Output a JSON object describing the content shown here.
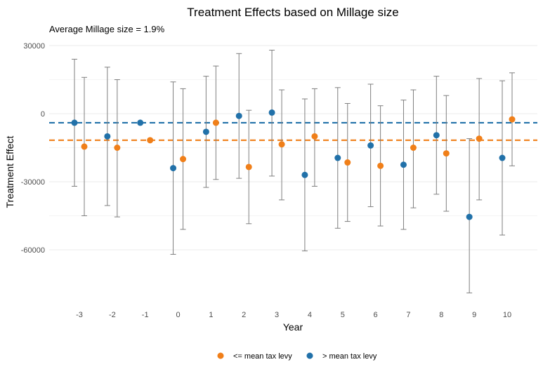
{
  "chart_data": {
    "type": "scatter",
    "title": "Treatment Effects based on Millage size",
    "subtitle": "Average Millage size = 1.9%",
    "xlabel": "Year",
    "ylabel": "Treatment Effect",
    "x": [
      -3,
      -2,
      -1,
      0,
      1,
      2,
      3,
      4,
      5,
      6,
      7,
      8,
      9,
      10
    ],
    "xticks": [
      "-3",
      "-2",
      "-1",
      "0",
      "1",
      "2",
      "3",
      "4",
      "5",
      "6",
      "7",
      "8",
      "9",
      "10"
    ],
    "ylim": [
      -80000,
      30000
    ],
    "yticks": [
      30000,
      0,
      -30000,
      -60000
    ],
    "ytick_labels": [
      "30000",
      "0",
      "-30000",
      "-60000"
    ],
    "grid": true,
    "legend_position": "bottom",
    "series": [
      {
        "name": "<= mean tax levy",
        "color": "#f07f19",
        "mean_line": -11700,
        "points": [
          {
            "x": -3,
            "y": -14500,
            "lo": -45000,
            "hi": 16000
          },
          {
            "x": -2,
            "y": -15000,
            "lo": -45500,
            "hi": 15000
          },
          {
            "x": -1,
            "y": -11700,
            "lo": null,
            "hi": null
          },
          {
            "x": 0,
            "y": -20000,
            "lo": -51000,
            "hi": 11000
          },
          {
            "x": 1,
            "y": -4000,
            "lo": -29000,
            "hi": 21000
          },
          {
            "x": 2,
            "y": -23500,
            "lo": -48500,
            "hi": 1500
          },
          {
            "x": 3,
            "y": -13500,
            "lo": -38000,
            "hi": 10500
          },
          {
            "x": 4,
            "y": -10000,
            "lo": -32000,
            "hi": 11000
          },
          {
            "x": 5,
            "y": -21500,
            "lo": -47500,
            "hi": 4500
          },
          {
            "x": 6,
            "y": -23000,
            "lo": -49500,
            "hi": 3500
          },
          {
            "x": 7,
            "y": -15000,
            "lo": -41500,
            "hi": 10500
          },
          {
            "x": 8,
            "y": -17500,
            "lo": -43000,
            "hi": 8000
          },
          {
            "x": 9,
            "y": -11000,
            "lo": -38000,
            "hi": 15500
          },
          {
            "x": 10,
            "y": -2500,
            "lo": -23000,
            "hi": 18000
          }
        ]
      },
      {
        "name": "> mean tax levy",
        "color": "#2171a9",
        "mean_line": -4000,
        "points": [
          {
            "x": -3,
            "y": -4000,
            "lo": -32000,
            "hi": 24000
          },
          {
            "x": -2,
            "y": -10000,
            "lo": -40500,
            "hi": 20500
          },
          {
            "x": -1,
            "y": -4000,
            "lo": null,
            "hi": null
          },
          {
            "x": 0,
            "y": -24000,
            "lo": -62000,
            "hi": 14000
          },
          {
            "x": 1,
            "y": -8000,
            "lo": -32500,
            "hi": 16500
          },
          {
            "x": 2,
            "y": -1000,
            "lo": -28500,
            "hi": 26500
          },
          {
            "x": 3,
            "y": 500,
            "lo": -27500,
            "hi": 28000
          },
          {
            "x": 4,
            "y": -27000,
            "lo": -60500,
            "hi": 6500
          },
          {
            "x": 5,
            "y": -19500,
            "lo": -50500,
            "hi": 11500
          },
          {
            "x": 6,
            "y": -14000,
            "lo": -41000,
            "hi": 13000
          },
          {
            "x": 7,
            "y": -22500,
            "lo": -51000,
            "hi": 6000
          },
          {
            "x": 8,
            "y": -9500,
            "lo": -35500,
            "hi": 16500
          },
          {
            "x": 9,
            "y": -45500,
            "lo": -79000,
            "hi": -11000
          },
          {
            "x": 10,
            "y": -19500,
            "lo": -53500,
            "hi": 14500
          }
        ]
      }
    ]
  }
}
